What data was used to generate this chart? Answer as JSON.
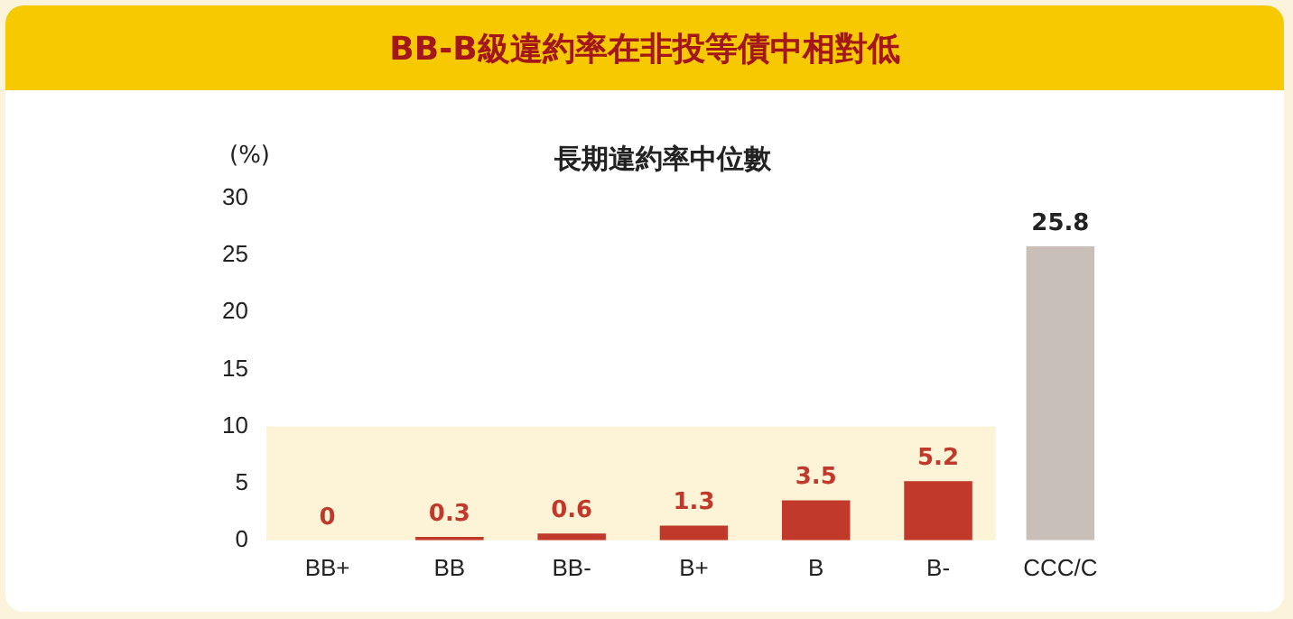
{
  "chart_data": {
    "type": "bar",
    "title": "BB-B級違約率在非投等債中相對低",
    "subtitle": "長期違約率中位數",
    "ylabel": "(%)",
    "categories": [
      "BB+",
      "BB",
      "BB-",
      "B+",
      "B",
      "B-",
      "CCC/C"
    ],
    "values": [
      0,
      0.3,
      0.6,
      1.3,
      3.5,
      5.2,
      25.8
    ],
    "colors": [
      "#c0392b",
      "#c0392b",
      "#c0392b",
      "#c0392b",
      "#c0392b",
      "#c0392b",
      "#c8bfb8"
    ],
    "ylim": [
      0,
      30
    ],
    "yticks": [
      0,
      5,
      10,
      15,
      20,
      25,
      30
    ],
    "grid": false,
    "legend": false,
    "data_labels": true,
    "bands": [
      {
        "axis": "y",
        "from": 0,
        "to": 10,
        "color": "#fdf3d6"
      }
    ]
  }
}
